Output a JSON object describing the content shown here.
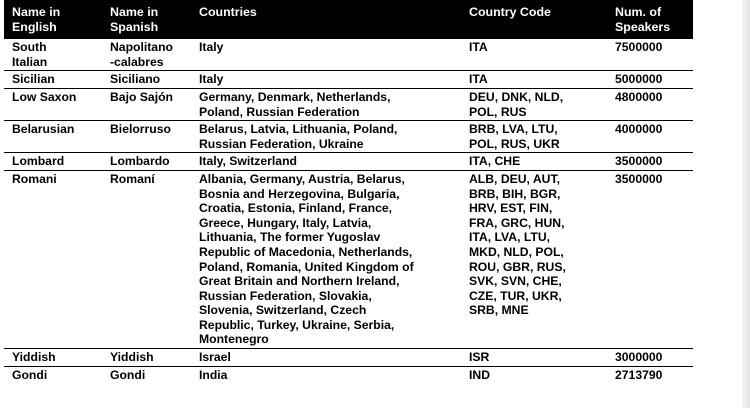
{
  "table": {
    "headers": {
      "english": "Name in\nEnglish",
      "spanish": "Name in\nSpanish",
      "countries": "Countries",
      "code": "Country Code",
      "speakers": "Num. of\nSpeakers"
    },
    "rows": [
      {
        "english": "South\nItalian",
        "spanish": "Napolitano\n-calabres",
        "countries": "Italy",
        "code": "ITA",
        "speakers": "7500000"
      },
      {
        "english": "Sicilian",
        "spanish": "Siciliano",
        "countries": "Italy",
        "code": "ITA",
        "speakers": "5000000"
      },
      {
        "english": "Low Saxon",
        "spanish": "Bajo Sajón",
        "countries": "Germany, Denmark, Netherlands,\nPoland, Russian Federation",
        "code": "DEU, DNK, NLD,\nPOL, RUS",
        "speakers": "4800000"
      },
      {
        "english": "Belarusian",
        "spanish": "Bielorruso",
        "countries": "Belarus, Latvia, Lithuania, Poland,\nRussian Federation, Ukraine",
        "code": "BRB, LVA, LTU,\nPOL, RUS, UKR",
        "speakers": "4000000"
      },
      {
        "english": "Lombard",
        "spanish": "Lombardo",
        "countries": "Italy, Switzerland",
        "code": "ITA, CHE",
        "speakers": "3500000"
      },
      {
        "english": "Romani",
        "spanish": "Romaní",
        "countries": "Albania, Germany, Austria, Belarus,\nBosnia and Herzegovina, Bulgaria,\nCroatia, Estonia, Finland, France,\nGreece, Hungary, Italy, Latvia,\nLithuania, The former Yugoslav\nRepublic of Macedonia, Netherlands,\nPoland, Romania, United Kingdom of\nGreat Britain and Northern Ireland,\nRussian Federation, Slovakia,\nSlovenia, Switzerland, Czech\nRepublic, Turkey, Ukraine, Serbia,\nMontenegro",
        "code": "ALB, DEU, AUT,\nBRB, BIH, BGR,\nHRV, EST, FIN,\nFRA, GRC, HUN,\nITA, LVA, LTU,\nMKD, NLD, POL,\nROU, GBR, RUS,\nSVK, SVN, CHE,\nCZE, TUR, UKR,\nSRB, MNE",
        "speakers": "3500000"
      },
      {
        "english": "Yiddish",
        "spanish": "Yiddish",
        "countries": "Israel",
        "code": "ISR",
        "speakers": "3000000"
      },
      {
        "english": "Gondi",
        "spanish": "Gondi",
        "countries": "India",
        "code": "IND",
        "speakers": "2713790"
      }
    ]
  }
}
